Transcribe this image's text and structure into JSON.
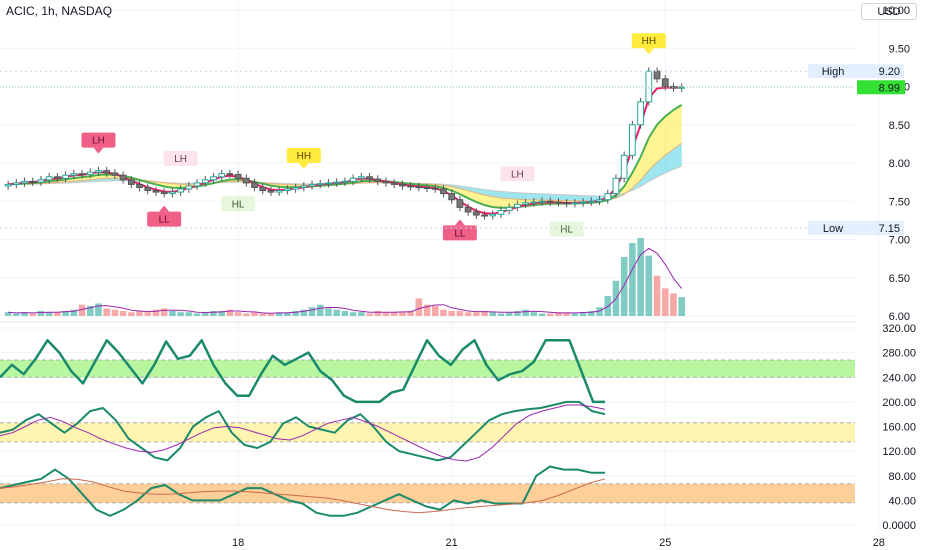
{
  "header": {
    "title": "ACIC, 1h, NASDAQ",
    "currency": "USD"
  },
  "price_labels": {
    "high_label": "High",
    "high_value": "9.20",
    "last_value": "8.99",
    "low_label": "Low",
    "low_value": "7.15"
  },
  "colors": {
    "up": "#26a69a",
    "down": "#ef5350",
    "ema_fast": "#e91e63",
    "ema_green": "#4caf50",
    "fill_yellow": "#ffeb3b",
    "fill_cyan": "#4dd0e1",
    "osc_green": "#1b8a6b",
    "osc_purple": "#9c27b0",
    "band_green": "#b9f6a0",
    "band_yellow": "#fff5b0",
    "band_orange": "#ffcf99",
    "last_price_bg": "#33e033"
  },
  "chart_data": [
    {
      "type": "candlestick",
      "title": "ACIC, 1h, NASDAQ",
      "x_tick_labels": [
        "18",
        "21",
        "25",
        "28"
      ],
      "y_ticks": [
        "10.00",
        "9.50",
        "9.00",
        "8.50",
        "8.00",
        "7.50",
        "7.00",
        "6.50",
        "6.00"
      ],
      "ylim": [
        6.0,
        10.0
      ],
      "close": [
        7.72,
        7.74,
        7.76,
        7.75,
        7.78,
        7.82,
        7.8,
        7.84,
        7.86,
        7.85,
        7.88,
        7.9,
        7.87,
        7.84,
        7.78,
        7.72,
        7.68,
        7.64,
        7.62,
        7.6,
        7.62,
        7.66,
        7.7,
        7.74,
        7.78,
        7.82,
        7.86,
        7.85,
        7.8,
        7.74,
        7.68,
        7.64,
        7.62,
        7.64,
        7.66,
        7.68,
        7.7,
        7.72,
        7.73,
        7.74,
        7.75,
        7.76,
        7.8,
        7.82,
        7.79,
        7.76,
        7.74,
        7.72,
        7.7,
        7.69,
        7.68,
        7.67,
        7.66,
        7.6,
        7.52,
        7.42,
        7.36,
        7.32,
        7.31,
        7.33,
        7.38,
        7.42,
        7.46,
        7.48,
        7.49,
        7.5,
        7.49,
        7.48,
        7.47,
        7.48,
        7.49,
        7.5,
        7.52,
        7.6,
        7.8,
        8.1,
        8.5,
        8.8,
        9.2,
        9.1,
        9.0,
        8.98,
        8.99
      ],
      "pattern_labels": [
        {
          "text": "LH",
          "bar": 11,
          "type": "high",
          "style": "red"
        },
        {
          "text": "LL",
          "bar": 19,
          "type": "low",
          "style": "red"
        },
        {
          "text": "LH",
          "bar": 21,
          "type": "high",
          "style": "pink"
        },
        {
          "text": "HL",
          "bar": 28,
          "type": "low",
          "style": "green"
        },
        {
          "text": "HH",
          "bar": 36,
          "type": "high",
          "style": "yellow"
        },
        {
          "text": "LL",
          "bar": 55,
          "type": "low",
          "style": "red"
        },
        {
          "text": "LH",
          "bar": 62,
          "type": "high",
          "style": "pink"
        },
        {
          "text": "HL",
          "bar": 68,
          "type": "low",
          "style": "green"
        },
        {
          "text": "HH",
          "bar": 78,
          "type": "high",
          "style": "yellow"
        }
      ]
    },
    {
      "type": "bar",
      "name": "volume",
      "values": [
        3,
        2,
        3,
        2,
        4,
        3,
        3,
        4,
        5,
        9,
        8,
        10,
        6,
        5,
        4,
        3,
        4,
        3,
        5,
        6,
        4,
        3,
        3,
        2,
        3,
        4,
        4,
        5,
        3,
        2,
        3,
        2,
        2,
        3,
        3,
        4,
        5,
        7,
        9,
        6,
        5,
        4,
        3,
        3,
        2,
        4,
        3,
        3,
        3,
        4,
        14,
        9,
        8,
        5,
        4,
        4,
        3,
        3,
        4,
        3,
        2,
        3,
        4,
        5,
        3,
        2,
        2,
        3,
        3,
        2,
        3,
        4,
        7,
        16,
        28,
        47,
        58,
        62,
        48,
        32,
        22,
        18,
        15
      ]
    },
    {
      "type": "line",
      "name": "oscillator",
      "y_ticks": [
        "320.00",
        "280.00",
        "240.00",
        "200.00",
        "160.00",
        "120.00",
        "80.00",
        "40.00",
        "0.0000"
      ],
      "ylim": [
        0,
        320
      ],
      "bands": [
        [
          240,
          268
        ],
        [
          135,
          166
        ],
        [
          36,
          67
        ]
      ],
      "series": [
        {
          "values": [
            240,
            260,
            245,
            270,
            300,
            280,
            250,
            230,
            265,
            300,
            280,
            255,
            230,
            260,
            298,
            270,
            275,
            300,
            260,
            230,
            210,
            210,
            245,
            275,
            260,
            270,
            280,
            250,
            235,
            210,
            200,
            200,
            200,
            215,
            220,
            260,
            300,
            275,
            260,
            285,
            300,
            260,
            235,
            245,
            250,
            265,
            300,
            300,
            300,
            250,
            200,
            200
          ]
        },
        {
          "values": [
            150,
            155,
            170,
            180,
            165,
            150,
            165,
            185,
            190,
            170,
            140,
            125,
            110,
            105,
            125,
            160,
            175,
            185,
            150,
            130,
            125,
            135,
            165,
            175,
            160,
            155,
            150,
            170,
            180,
            160,
            135,
            120,
            115,
            110,
            105,
            110,
            130,
            150,
            170,
            180,
            185,
            188,
            190,
            195,
            200,
            200,
            185,
            180
          ]
        },
        {
          "values": [
            145,
            150,
            160,
            170,
            175,
            168,
            158,
            150,
            140,
            132,
            125,
            120,
            118,
            122,
            130,
            140,
            150,
            158,
            160,
            158,
            152,
            146,
            140,
            138,
            145,
            155,
            165,
            170,
            175,
            168,
            160,
            150,
            140,
            130,
            120,
            112,
            106,
            104,
            110,
            125,
            145,
            165,
            178,
            185,
            190,
            195,
            195,
            192,
            188
          ]
        },
        {
          "values": [
            60,
            65,
            70,
            75,
            90,
            75,
            50,
            25,
            15,
            25,
            40,
            60,
            65,
            50,
            40,
            40,
            40,
            50,
            60,
            60,
            50,
            40,
            35,
            20,
            15,
            15,
            20,
            30,
            40,
            50,
            40,
            30,
            25,
            40,
            35,
            40,
            35,
            35,
            35,
            80,
            95,
            90,
            90,
            85,
            85
          ]
        },
        {
          "values": [
            60,
            62,
            66,
            70,
            75,
            74,
            70,
            62,
            55,
            52,
            50,
            50,
            52,
            54,
            55,
            55,
            54,
            52,
            50,
            48,
            46,
            44,
            40,
            35,
            30,
            25,
            22,
            20,
            22,
            25,
            28,
            30,
            32,
            34,
            36,
            40,
            48,
            58,
            68,
            75
          ]
        }
      ]
    }
  ]
}
